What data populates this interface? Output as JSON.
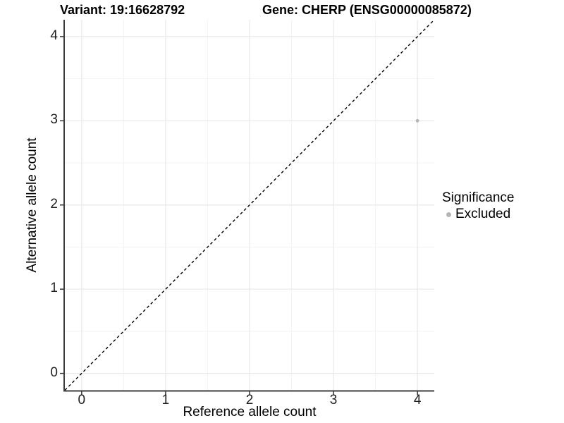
{
  "titles": {
    "variant": "Variant: 19:16628792",
    "gene": "Gene: CHERP (ENSG00000085872)"
  },
  "axes": {
    "x_label": "Reference allele count",
    "y_label": "Alternative allele count"
  },
  "legend": {
    "title": "Significance",
    "items": [
      {
        "label": "Excluded",
        "color": "#b5b5b5"
      }
    ]
  },
  "colors": {
    "background": "#ffffff",
    "grid_major": "#e8e8e8",
    "grid_minor": "#f3f3f3",
    "axis_line": "#3d3d3d",
    "tick": "#333333",
    "point": "#b5b5b5",
    "reference_line": "#000000"
  },
  "chart_data": {
    "type": "scatter",
    "title_left": "Variant: 19:16628792",
    "title_right": "Gene: CHERP (ENSG00000085872)",
    "xlabel": "Reference allele count",
    "ylabel": "Alternative allele count",
    "xlim": [
      -0.2,
      4.2
    ],
    "ylim": [
      -0.2,
      4.2
    ],
    "xticks": [
      0,
      1,
      2,
      3,
      4
    ],
    "yticks": [
      0,
      1,
      2,
      3,
      4
    ],
    "xticks_minor": [
      0.5,
      1.5,
      2.5,
      3.5
    ],
    "yticks_minor": [
      0.5,
      1.5,
      2.5,
      3.5
    ],
    "grid": true,
    "legend_position": "right",
    "legend_title": "Significance",
    "reference_line": {
      "type": "identity",
      "slope": 1,
      "intercept": 0,
      "style": "dashed"
    },
    "series": [
      {
        "name": "Excluded",
        "color": "#b5b5b5",
        "points": [
          [
            4,
            3
          ]
        ]
      }
    ]
  }
}
